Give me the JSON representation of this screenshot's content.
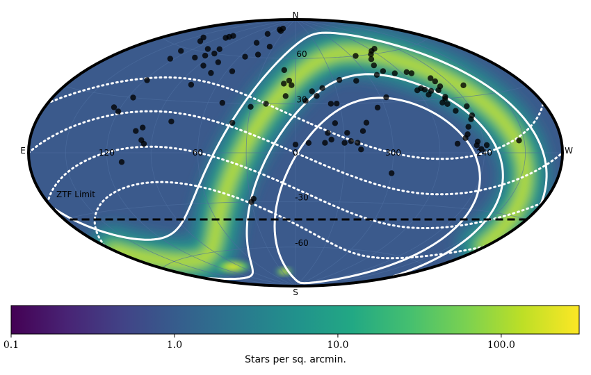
{
  "chart_data": {
    "type": "scatter",
    "projection": "hammer-aitoff",
    "coordinate_system": "equatorial",
    "background": "stellar density map",
    "compass": {
      "north": "N",
      "south": "S",
      "east": "E",
      "west": "W"
    },
    "ra_tick_labels": [
      "120",
      "60",
      "0",
      "300",
      "240"
    ],
    "ra_tick_values": [
      120,
      60,
      0,
      300,
      240
    ],
    "dec_tick_labels": [
      "60",
      "30",
      "-30",
      "-60"
    ],
    "dec_tick_values": [
      60,
      30,
      -30,
      -60
    ],
    "ztf_limit": {
      "label": "ZTF Limit",
      "dec": -30
    },
    "colorbar": {
      "scale": "log",
      "range": [
        0.1,
        300
      ],
      "tick_labels": [
        "0.1",
        "1.0",
        "10.0",
        "100.0"
      ],
      "tick_values": [
        0.1,
        1,
        10,
        100
      ],
      "label": "Stars per sq. arcmin.",
      "colormap": "viridis"
    },
    "points": [
      [
        42,
        82
      ],
      [
        48,
        81
      ],
      [
        40,
        80
      ],
      [
        61,
        77
      ],
      [
        58,
        70
      ],
      [
        54,
        60
      ],
      [
        92,
        63
      ],
      [
        90,
        60
      ],
      [
        96,
        58
      ],
      [
        105,
        62
      ],
      [
        103,
        56
      ],
      [
        110,
        72
      ],
      [
        112,
        71
      ],
      [
        113,
        70
      ],
      [
        140,
        67
      ],
      [
        132,
        65
      ],
      [
        128,
        58
      ],
      [
        124,
        53
      ],
      [
        118,
        40
      ],
      [
        116,
        30
      ],
      [
        125,
        24
      ],
      [
        120,
        22
      ],
      [
        102,
        12
      ],
      [
        98,
        14
      ],
      [
        97,
        7
      ],
      [
        95,
        5
      ],
      [
        85,
        52
      ],
      [
        80,
        40
      ],
      [
        75,
        55
      ],
      [
        72,
        48
      ],
      [
        55,
        50
      ],
      [
        50,
        30
      ],
      [
        42,
        62
      ],
      [
        35,
        68
      ],
      [
        30,
        28
      ],
      [
        20,
        30
      ],
      [
        10,
        52
      ],
      [
        5,
        45
      ],
      [
        7,
        35
      ],
      [
        3,
        42
      ],
      [
        348,
        38
      ],
      [
        345,
        35
      ],
      [
        353,
        32
      ],
      [
        336,
        30
      ],
      [
        332,
        30
      ],
      [
        325,
        45
      ],
      [
        312,
        44
      ],
      [
        340,
        12
      ],
      [
        338,
        8
      ],
      [
        330,
        6
      ],
      [
        326,
        7
      ],
      [
        322,
        6
      ],
      [
        318,
        13
      ],
      [
        315,
        18
      ],
      [
        335,
        18
      ],
      [
        352,
        6
      ],
      [
        40,
        18
      ],
      [
        0,
        5
      ],
      [
        9,
        43
      ],
      [
        340,
        40
      ],
      [
        320,
        2
      ],
      [
        300,
        -12
      ],
      [
        80,
        18
      ],
      [
        28,
        -28
      ],
      [
        30,
        -30
      ],
      [
        110,
        -5
      ],
      [
        342,
        6
      ],
      [
        328,
        12
      ],
      [
        305,
        27
      ],
      [
        296,
        33
      ],
      [
        287,
        53
      ],
      [
        284,
        49
      ],
      [
        276,
        47
      ],
      [
        270,
        36
      ],
      [
        265,
        47
      ],
      [
        262,
        46
      ],
      [
        271,
        62
      ],
      [
        264,
        63
      ],
      [
        266,
        37
      ],
      [
        264,
        36
      ],
      [
        258,
        28
      ],
      [
        255,
        27
      ],
      [
        254,
        30
      ],
      [
        253,
        31
      ],
      [
        252,
        23
      ],
      [
        248,
        14
      ],
      [
        250,
        10
      ],
      [
        252,
        8
      ],
      [
        244,
        18
      ],
      [
        242,
        25
      ],
      [
        242,
        20
      ],
      [
        251,
        42
      ],
      [
        250,
        40
      ],
      [
        244,
        6
      ],
      [
        245,
        4
      ],
      [
        242,
        2
      ],
      [
        238,
        4
      ],
      [
        231,
        36
      ],
      [
        258,
        5
      ],
      [
        214,
        6
      ],
      [
        292,
        47
      ],
      [
        283,
        57
      ],
      [
        295,
        60
      ],
      [
        277,
        60
      ],
      [
        250,
        37
      ],
      [
        254,
        35
      ],
      [
        260,
        35
      ],
      [
        264,
        33
      ]
    ]
  }
}
